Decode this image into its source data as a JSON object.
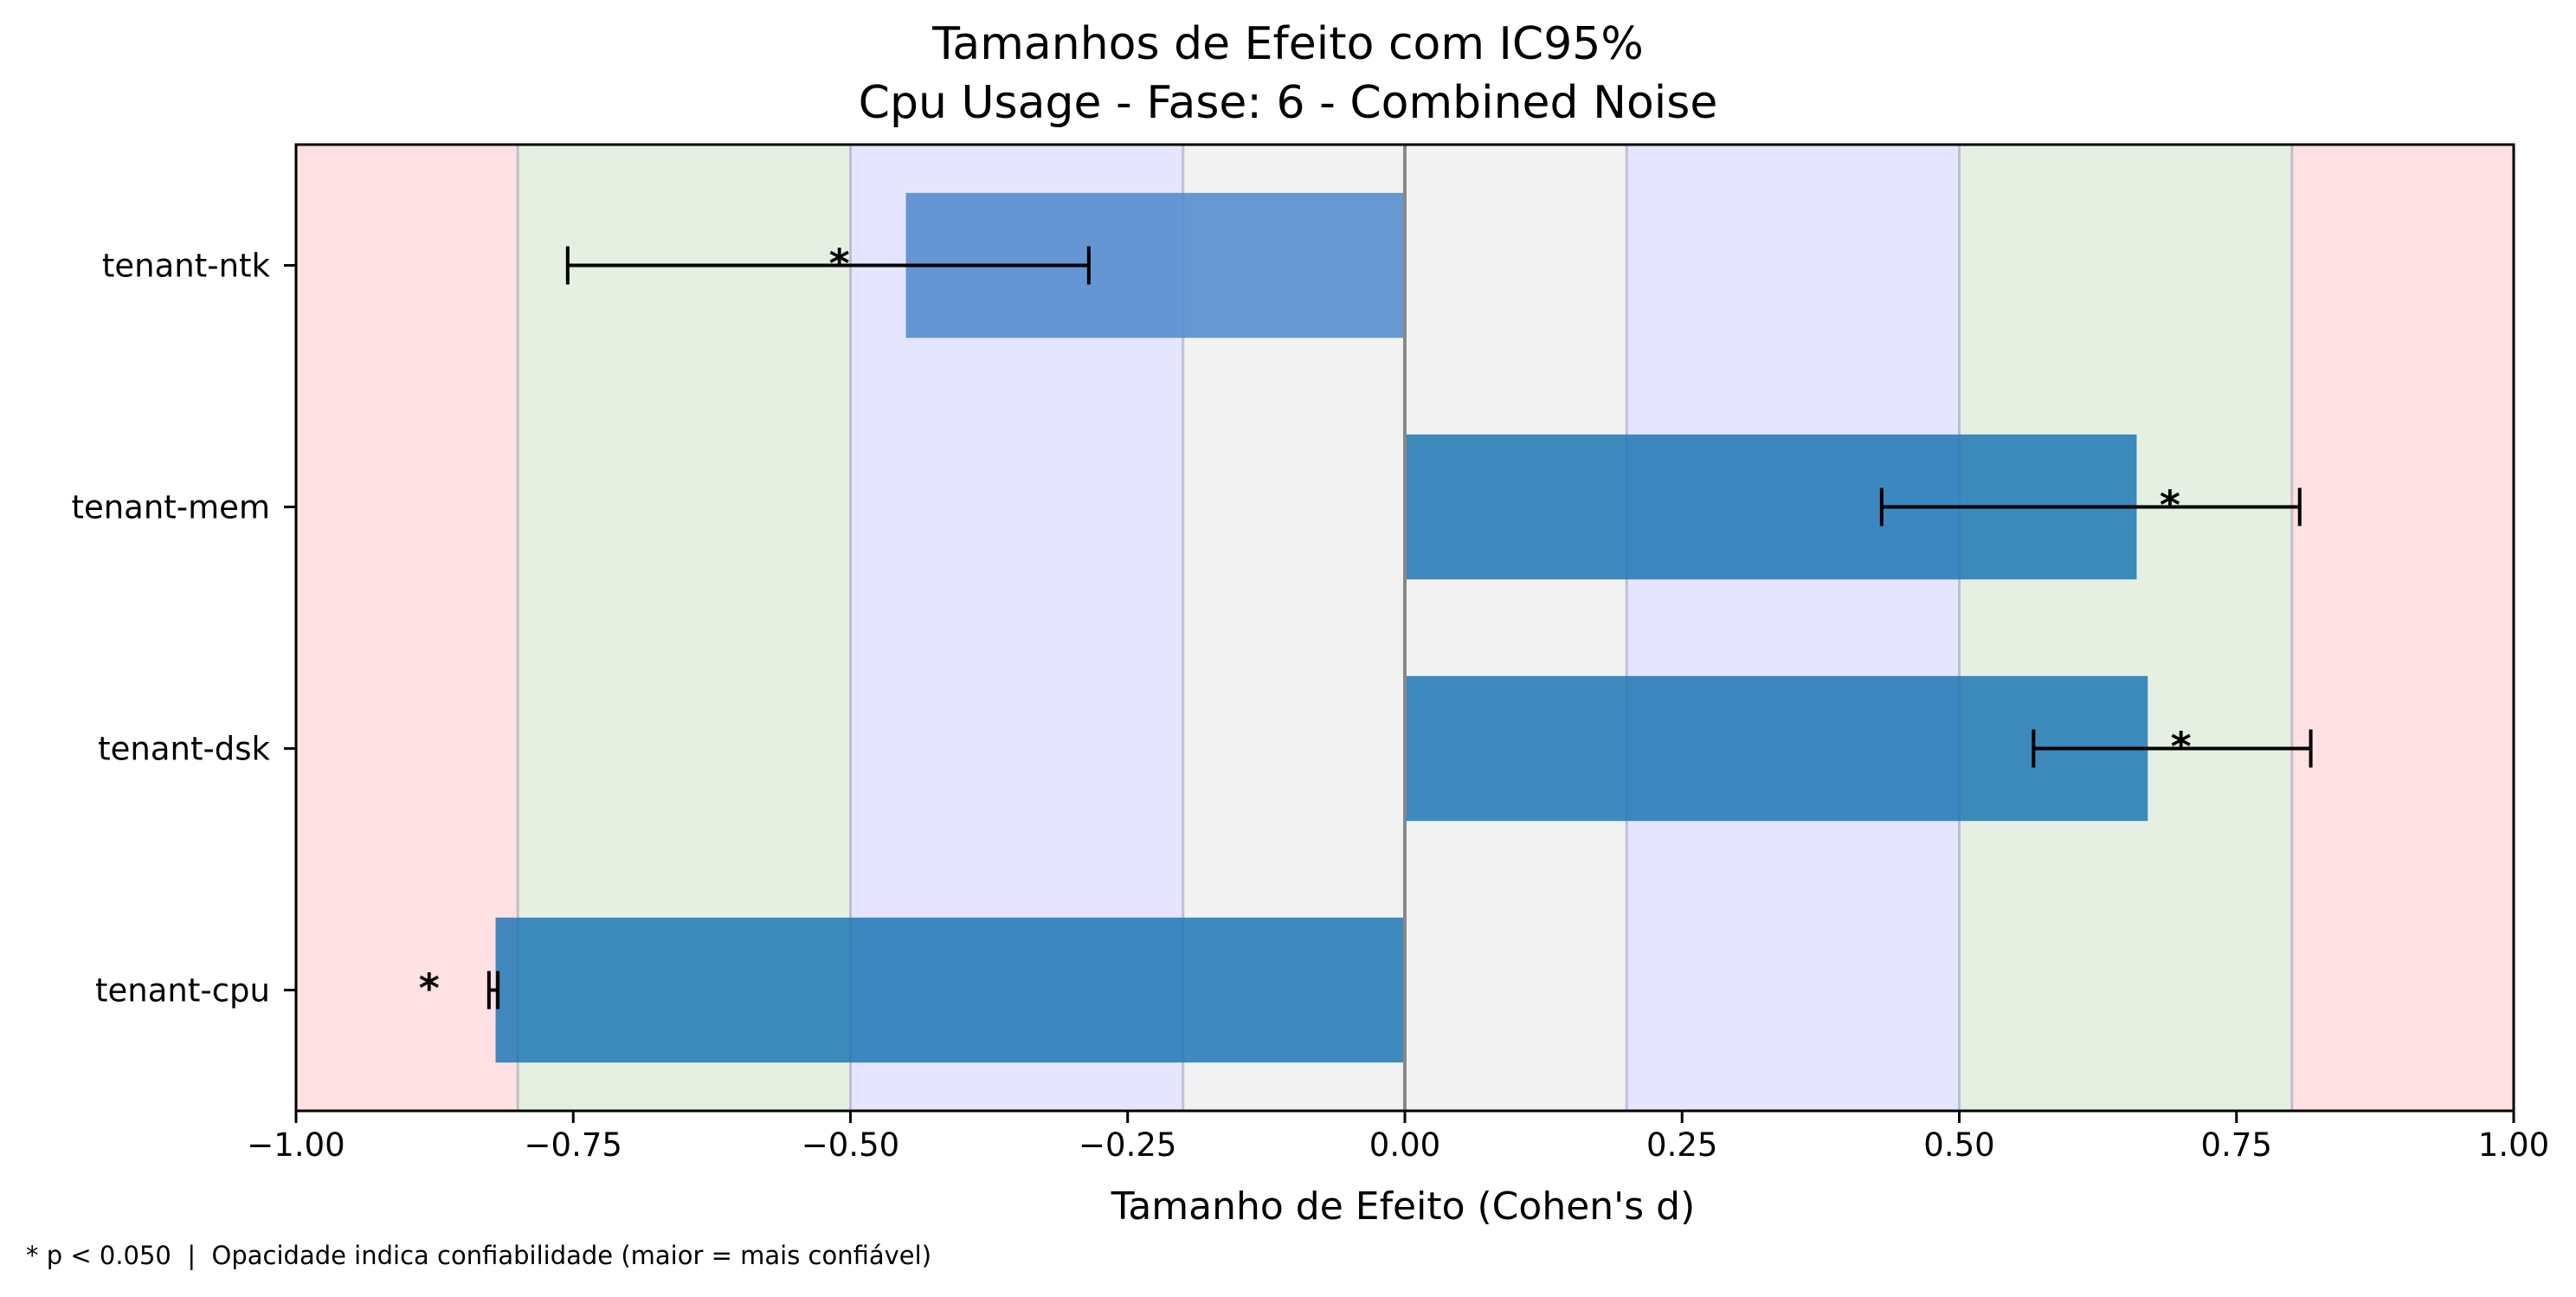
{
  "chart_data": {
    "type": "bar",
    "orientation": "horizontal",
    "title": "Tamanhos de Efeito com IC95%",
    "subtitle": "Cpu Usage - Fase: 6 - Combined Noise",
    "xlabel": "Tamanho de Efeito (Cohen's d)",
    "ylabel": "",
    "xlim": [
      -1.0,
      1.0
    ],
    "grid": false,
    "x_ticks": [
      "−1.00",
      "−0.75",
      "−0.50",
      "−0.25",
      "0.00",
      "0.25",
      "0.50",
      "0.75",
      "1.00"
    ],
    "x_tick_values": [
      -1.0,
      -0.75,
      -0.5,
      -0.25,
      0.0,
      0.25,
      0.5,
      0.75,
      1.0
    ],
    "categories": [
      "tenant-ntk",
      "tenant-mem",
      "tenant-dsk",
      "tenant-cpu"
    ],
    "values": [
      -0.45,
      0.66,
      0.67,
      -0.82
    ],
    "ci_lower": [
      -0.755,
      0.43,
      0.567,
      -0.826
    ],
    "ci_upper": [
      -0.285,
      0.807,
      0.817,
      -0.818
    ],
    "significance_marker": "*",
    "significant": [
      true,
      true,
      true,
      true
    ],
    "bar_colors": [
      "#4d88cc",
      "#1f77b4",
      "#1f77b4",
      "#1f77b4"
    ],
    "bar_opacity": [
      0.85,
      0.85,
      0.85,
      0.85
    ],
    "effect_bands": [
      {
        "from": -1.0,
        "to": -0.8,
        "color": "#ffe0e3"
      },
      {
        "from": -0.8,
        "to": -0.5,
        "color": "#e5f0e3"
      },
      {
        "from": -0.5,
        "to": -0.2,
        "color": "#e5e5ff"
      },
      {
        "from": -0.2,
        "to": 0.2,
        "color": "#f2f2f2"
      },
      {
        "from": 0.2,
        "to": 0.5,
        "color": "#e5e5ff"
      },
      {
        "from": 0.5,
        "to": 0.8,
        "color": "#e5f0e3"
      },
      {
        "from": 0.8,
        "to": 1.0,
        "color": "#ffe0e3"
      }
    ],
    "footnote": "* p < 0.050  |  Opacidade indica confiabilidade (maior = mais confiável)"
  }
}
